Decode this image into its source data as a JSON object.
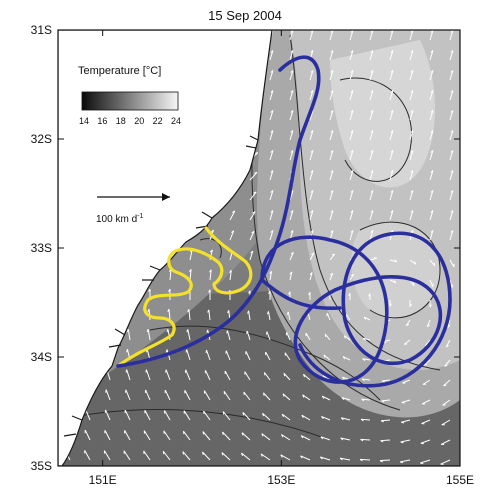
{
  "title": "15 Sep 2004",
  "map": {
    "lon_range_deg_e": [
      150.5,
      155.0
    ],
    "lat_range_deg_s": [
      31.0,
      35.0
    ],
    "x_ticks": [
      {
        "lon": 151,
        "label": "151E"
      },
      {
        "lon": 153,
        "label": "153E"
      },
      {
        "lon": 155,
        "label": "155E"
      }
    ],
    "y_ticks": [
      {
        "lat": 31,
        "label": "31S"
      },
      {
        "lat": 32,
        "label": "32S"
      },
      {
        "lat": 33,
        "label": "33S"
      },
      {
        "lat": 34,
        "label": "34S"
      },
      {
        "lat": 35,
        "label": "35S"
      }
    ]
  },
  "colorbar": {
    "title_text": "Temperature [",
    "title_unit": "°C",
    "title_close": "]",
    "tick_labels": [
      "14",
      "16",
      "18",
      "20",
      "22",
      "24"
    ],
    "range_celsius": [
      14,
      24
    ]
  },
  "velocity_scale": {
    "label_prefix": "100 km d",
    "label_exponent": "-1"
  },
  "colors": {
    "glider_track_blue": "#2b2f9e",
    "glider_track_yellow": "#f3e12a",
    "land": "#ffffff",
    "contour_lines": "#2a2a2a",
    "velocity_vectors": "#ffffff"
  }
}
